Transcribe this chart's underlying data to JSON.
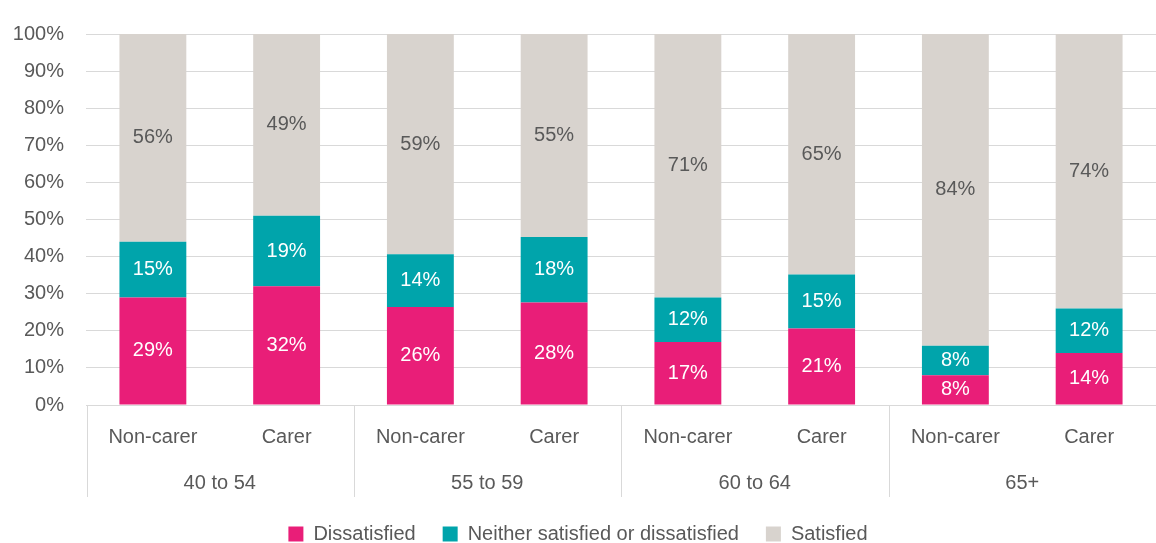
{
  "chart_data": {
    "type": "bar",
    "stacked": true,
    "categories": [
      "Non-carer",
      "Carer",
      "Non-carer",
      "Carer",
      "Non-carer",
      "Carer",
      "Non-carer",
      "Carer"
    ],
    "annotations": [
      "40 to 54",
      "55 to 59",
      "60 to 64",
      "65+"
    ],
    "series": [
      {
        "name": "Dissatisfied",
        "color": "#e91e78",
        "values": [
          29,
          32,
          26.4,
          27.6,
          17,
          20.6,
          8,
          14
        ],
        "value_labels": [
          "29%",
          "32%",
          "26%",
          "28%",
          "17%",
          "21%",
          "8%",
          "14%"
        ]
      },
      {
        "name": "Neither satisfied or dissatisfied",
        "color": "#00a4ab",
        "values": [
          15,
          19,
          14.2,
          17.7,
          12,
          14.6,
          8,
          12
        ],
        "value_labels": [
          "15%",
          "19%",
          "14%",
          "18%",
          "12%",
          "15%",
          "8%",
          "12%"
        ]
      },
      {
        "name": "Satisfied",
        "color": "#d8d3ce",
        "values": [
          56,
          49,
          59.4,
          54.7,
          71,
          64.8,
          84,
          74
        ],
        "value_labels": [
          "56%",
          "49%",
          "59%",
          "55%",
          "71%",
          "65%",
          "84%",
          "74%"
        ]
      }
    ],
    "ylim": [
      0,
      100
    ],
    "yticks": [
      {
        "value": 0,
        "label": "0%"
      },
      {
        "value": 10,
        "label": "10%"
      },
      {
        "value": 20,
        "label": "20%"
      },
      {
        "value": 30,
        "label": "30%"
      },
      {
        "value": 40,
        "label": "40%"
      },
      {
        "value": 50,
        "label": "50%"
      },
      {
        "value": 60,
        "label": "60%"
      },
      {
        "value": 70,
        "label": "70%"
      },
      {
        "value": 80,
        "label": "80%"
      },
      {
        "value": 90,
        "label": "90%"
      },
      {
        "value": 100,
        "label": "100%"
      }
    ],
    "grid": "y",
    "legend": "bottom"
  }
}
